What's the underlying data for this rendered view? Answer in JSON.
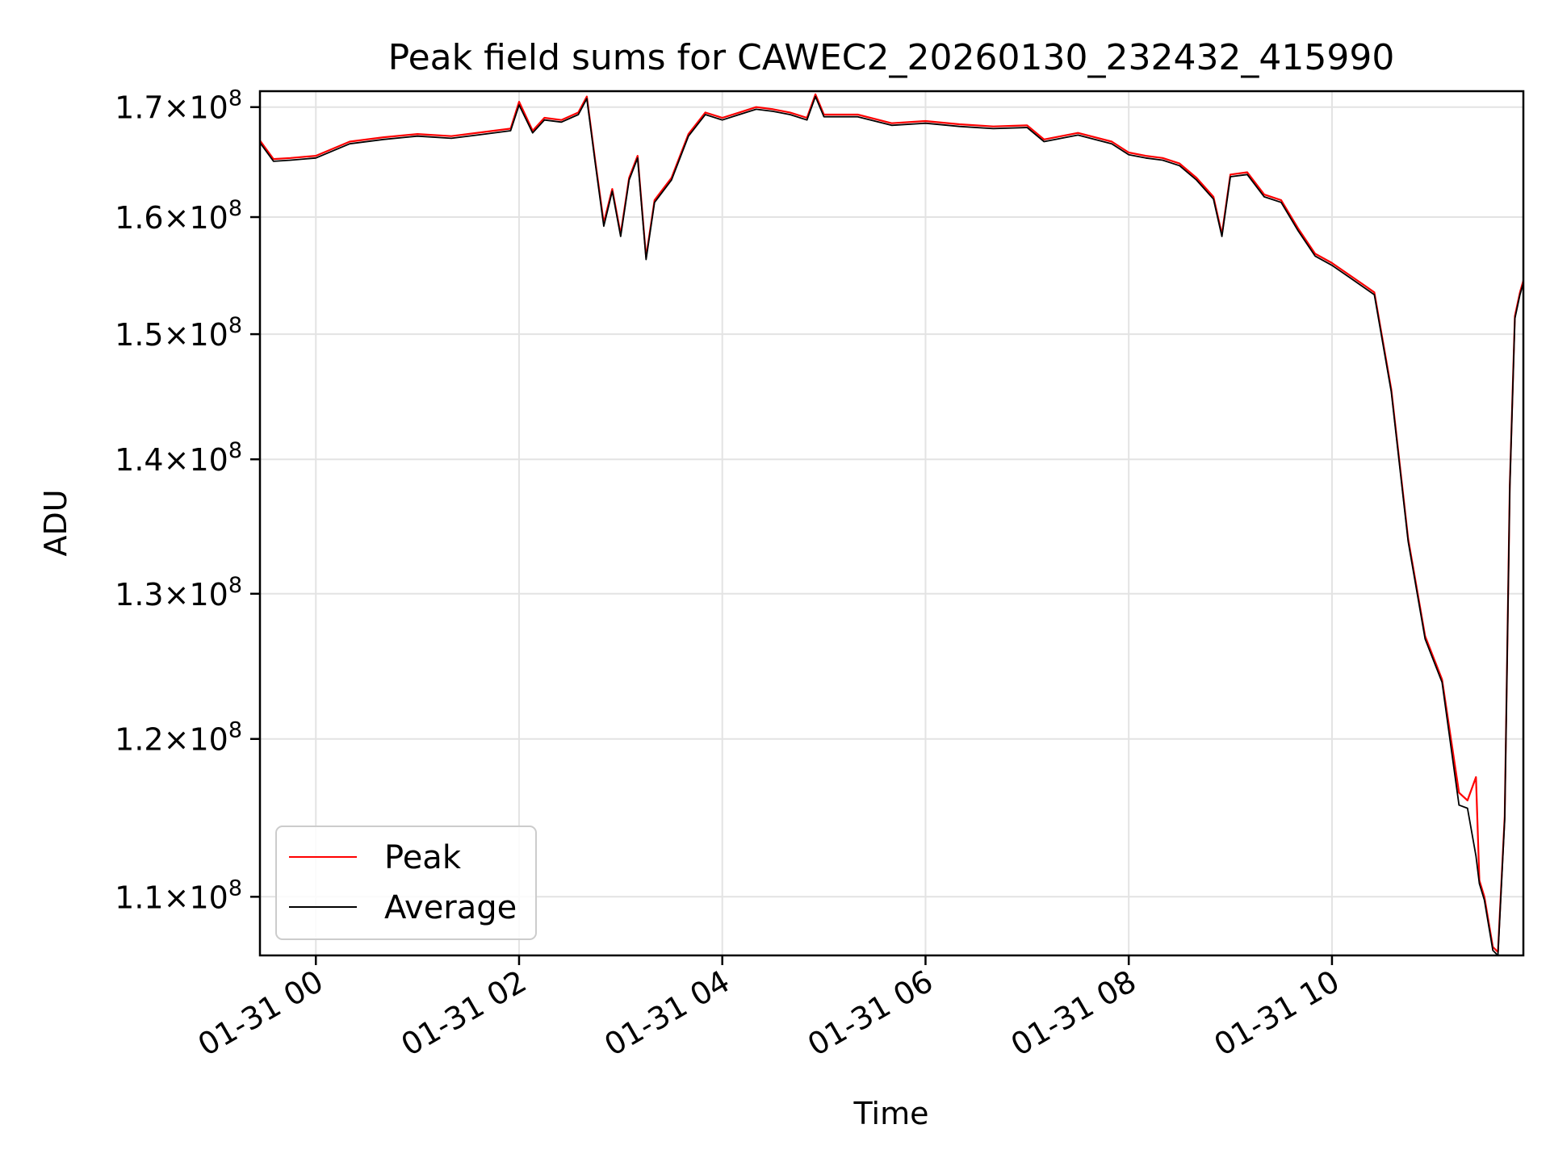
{
  "chart_data": {
    "type": "line",
    "title": "Peak field sums for CAWEC2_20260130_232432_415990",
    "xlabel": "Time",
    "ylabel": "ADU",
    "y_scale": "log",
    "grid": true,
    "legend_position": "lower-left",
    "xlim": [
      "01-30 23:27",
      "01-31 11:53"
    ],
    "ylim": [
      106500000,
      171500000
    ],
    "x_ticks": [
      {
        "value": "01-31 00:00",
        "label": "01-31 00"
      },
      {
        "value": "01-31 02:00",
        "label": "01-31 02"
      },
      {
        "value": "01-31 04:00",
        "label": "01-31 04"
      },
      {
        "value": "01-31 06:00",
        "label": "01-31 06"
      },
      {
        "value": "01-31 08:00",
        "label": "01-31 08"
      },
      {
        "value": "01-31 10:00",
        "label": "01-31 10"
      }
    ],
    "y_ticks": [
      {
        "value": 110000000,
        "mantissa": "1.1",
        "exponent": "8"
      },
      {
        "value": 120000000,
        "mantissa": "1.2",
        "exponent": "8"
      },
      {
        "value": 130000000,
        "mantissa": "1.3",
        "exponent": "8"
      },
      {
        "value": 140000000,
        "mantissa": "1.4",
        "exponent": "8"
      },
      {
        "value": 150000000,
        "mantissa": "1.5",
        "exponent": "8"
      },
      {
        "value": 160000000,
        "mantissa": "1.6",
        "exponent": "8"
      },
      {
        "value": 170000000,
        "mantissa": "1.7",
        "exponent": "8"
      }
    ],
    "tick_times_symbol": "×",
    "series": [
      {
        "name": "Peak",
        "color": "#ff0000",
        "x": [
          "01-30 23:27",
          "01-30 23:35",
          "01-30 23:45",
          "01-31 00:00",
          "01-31 00:20",
          "01-31 00:40",
          "01-31 01:00",
          "01-31 01:20",
          "01-31 01:40",
          "01-31 01:55",
          "01-31 02:00",
          "01-31 02:08",
          "01-31 02:15",
          "01-31 02:25",
          "01-31 02:35",
          "01-31 02:40",
          "01-31 02:45",
          "01-31 02:50",
          "01-31 02:55",
          "01-31 03:00",
          "01-31 03:05",
          "01-31 03:10",
          "01-31 03:15",
          "01-31 03:20",
          "01-31 03:25",
          "01-31 03:30",
          "01-31 03:40",
          "01-31 03:50",
          "01-31 04:00",
          "01-31 04:10",
          "01-31 04:20",
          "01-31 04:30",
          "01-31 04:40",
          "01-31 04:50",
          "01-31 04:55",
          "01-31 05:00",
          "01-31 05:20",
          "01-31 05:40",
          "01-31 06:00",
          "01-31 06:20",
          "01-31 06:40",
          "01-31 07:00",
          "01-31 07:10",
          "01-31 07:30",
          "01-31 07:50",
          "01-31 08:00",
          "01-31 08:10",
          "01-31 08:20",
          "01-31 08:30",
          "01-31 08:40",
          "01-31 08:50",
          "01-31 08:55",
          "01-31 09:00",
          "01-31 09:10",
          "01-31 09:20",
          "01-31 09:30",
          "01-31 09:40",
          "01-31 09:50",
          "01-31 10:00",
          "01-31 10:10",
          "01-31 10:20",
          "01-31 10:25",
          "01-31 10:35",
          "01-31 10:45",
          "01-31 10:55",
          "01-31 11:05",
          "01-31 11:15",
          "01-31 11:20",
          "01-31 11:25",
          "01-31 11:27",
          "01-31 11:30",
          "01-31 11:35",
          "01-31 11:38",
          "01-31 11:42",
          "01-31 11:45",
          "01-31 11:48",
          "01-31 11:51",
          "01-31 11:53"
        ],
        "y": [
          166900000,
          165200000,
          165300000,
          165500000,
          166800000,
          167200000,
          167500000,
          167300000,
          167700000,
          168000000,
          170500000,
          167800000,
          169000000,
          168800000,
          169500000,
          171000000,
          165000000,
          159500000,
          162500000,
          158500000,
          163500000,
          165500000,
          156500000,
          161500000,
          162500000,
          163500000,
          167500000,
          169500000,
          169000000,
          169500000,
          170000000,
          169800000,
          169500000,
          169000000,
          171200000,
          169300000,
          169300000,
          168500000,
          168700000,
          168400000,
          168200000,
          168300000,
          167000000,
          167600000,
          166800000,
          165800000,
          165500000,
          165300000,
          164800000,
          163500000,
          161800000,
          158500000,
          163800000,
          164000000,
          162000000,
          161500000,
          159000000,
          156800000,
          156000000,
          155000000,
          154000000,
          153500000,
          145500000,
          134000000,
          127000000,
          124000000,
          116500000,
          116000000,
          117500000,
          111000000,
          110000000,
          107000000,
          106700000,
          115000000,
          138000000,
          151500000,
          153500000,
          154500000
        ]
      },
      {
        "name": "Average",
        "color": "#000000",
        "x": [
          "01-30 23:27",
          "01-30 23:35",
          "01-30 23:45",
          "01-31 00:00",
          "01-31 00:20",
          "01-31 00:40",
          "01-31 01:00",
          "01-31 01:20",
          "01-31 01:40",
          "01-31 01:55",
          "01-31 02:00",
          "01-31 02:08",
          "01-31 02:15",
          "01-31 02:25",
          "01-31 02:35",
          "01-31 02:40",
          "01-31 02:45",
          "01-31 02:50",
          "01-31 02:55",
          "01-31 03:00",
          "01-31 03:05",
          "01-31 03:10",
          "01-31 03:15",
          "01-31 03:20",
          "01-31 03:25",
          "01-31 03:30",
          "01-31 03:40",
          "01-31 03:50",
          "01-31 04:00",
          "01-31 04:10",
          "01-31 04:20",
          "01-31 04:30",
          "01-31 04:40",
          "01-31 04:50",
          "01-31 04:55",
          "01-31 05:00",
          "01-31 05:20",
          "01-31 05:40",
          "01-31 06:00",
          "01-31 06:20",
          "01-31 06:40",
          "01-31 07:00",
          "01-31 07:10",
          "01-31 07:30",
          "01-31 07:50",
          "01-31 08:00",
          "01-31 08:10",
          "01-31 08:20",
          "01-31 08:30",
          "01-31 08:40",
          "01-31 08:50",
          "01-31 08:55",
          "01-31 09:00",
          "01-31 09:10",
          "01-31 09:20",
          "01-31 09:30",
          "01-31 09:40",
          "01-31 09:50",
          "01-31 10:00",
          "01-31 10:10",
          "01-31 10:20",
          "01-31 10:25",
          "01-31 10:35",
          "01-31 10:45",
          "01-31 10:55",
          "01-31 11:05",
          "01-31 11:15",
          "01-31 11:20",
          "01-31 11:25",
          "01-31 11:27",
          "01-31 11:30",
          "01-31 11:35",
          "01-31 11:38",
          "01-31 11:42",
          "01-31 11:45",
          "01-31 11:48",
          "01-31 11:51",
          "01-31 11:53"
        ],
        "y": [
          166700000,
          165000000,
          165100000,
          165300000,
          166600000,
          167000000,
          167300000,
          167100000,
          167500000,
          167800000,
          170200000,
          167600000,
          168800000,
          168600000,
          169300000,
          170800000,
          164800000,
          159200000,
          162300000,
          158300000,
          163300000,
          165300000,
          156300000,
          161300000,
          162300000,
          163300000,
          167300000,
          169300000,
          168800000,
          169300000,
          169800000,
          169600000,
          169300000,
          168800000,
          171000000,
          169100000,
          169100000,
          168300000,
          168500000,
          168200000,
          168000000,
          168100000,
          166800000,
          167400000,
          166600000,
          165600000,
          165300000,
          165100000,
          164600000,
          163300000,
          161600000,
          158300000,
          163600000,
          163800000,
          161800000,
          161300000,
          158800000,
          156600000,
          155800000,
          154800000,
          153800000,
          153300000,
          145300000,
          133800000,
          126800000,
          123800000,
          115700000,
          115500000,
          112500000,
          110800000,
          109800000,
          106800000,
          106500000,
          114800000,
          137800000,
          151300000,
          153300000,
          154300000
        ]
      }
    ]
  }
}
